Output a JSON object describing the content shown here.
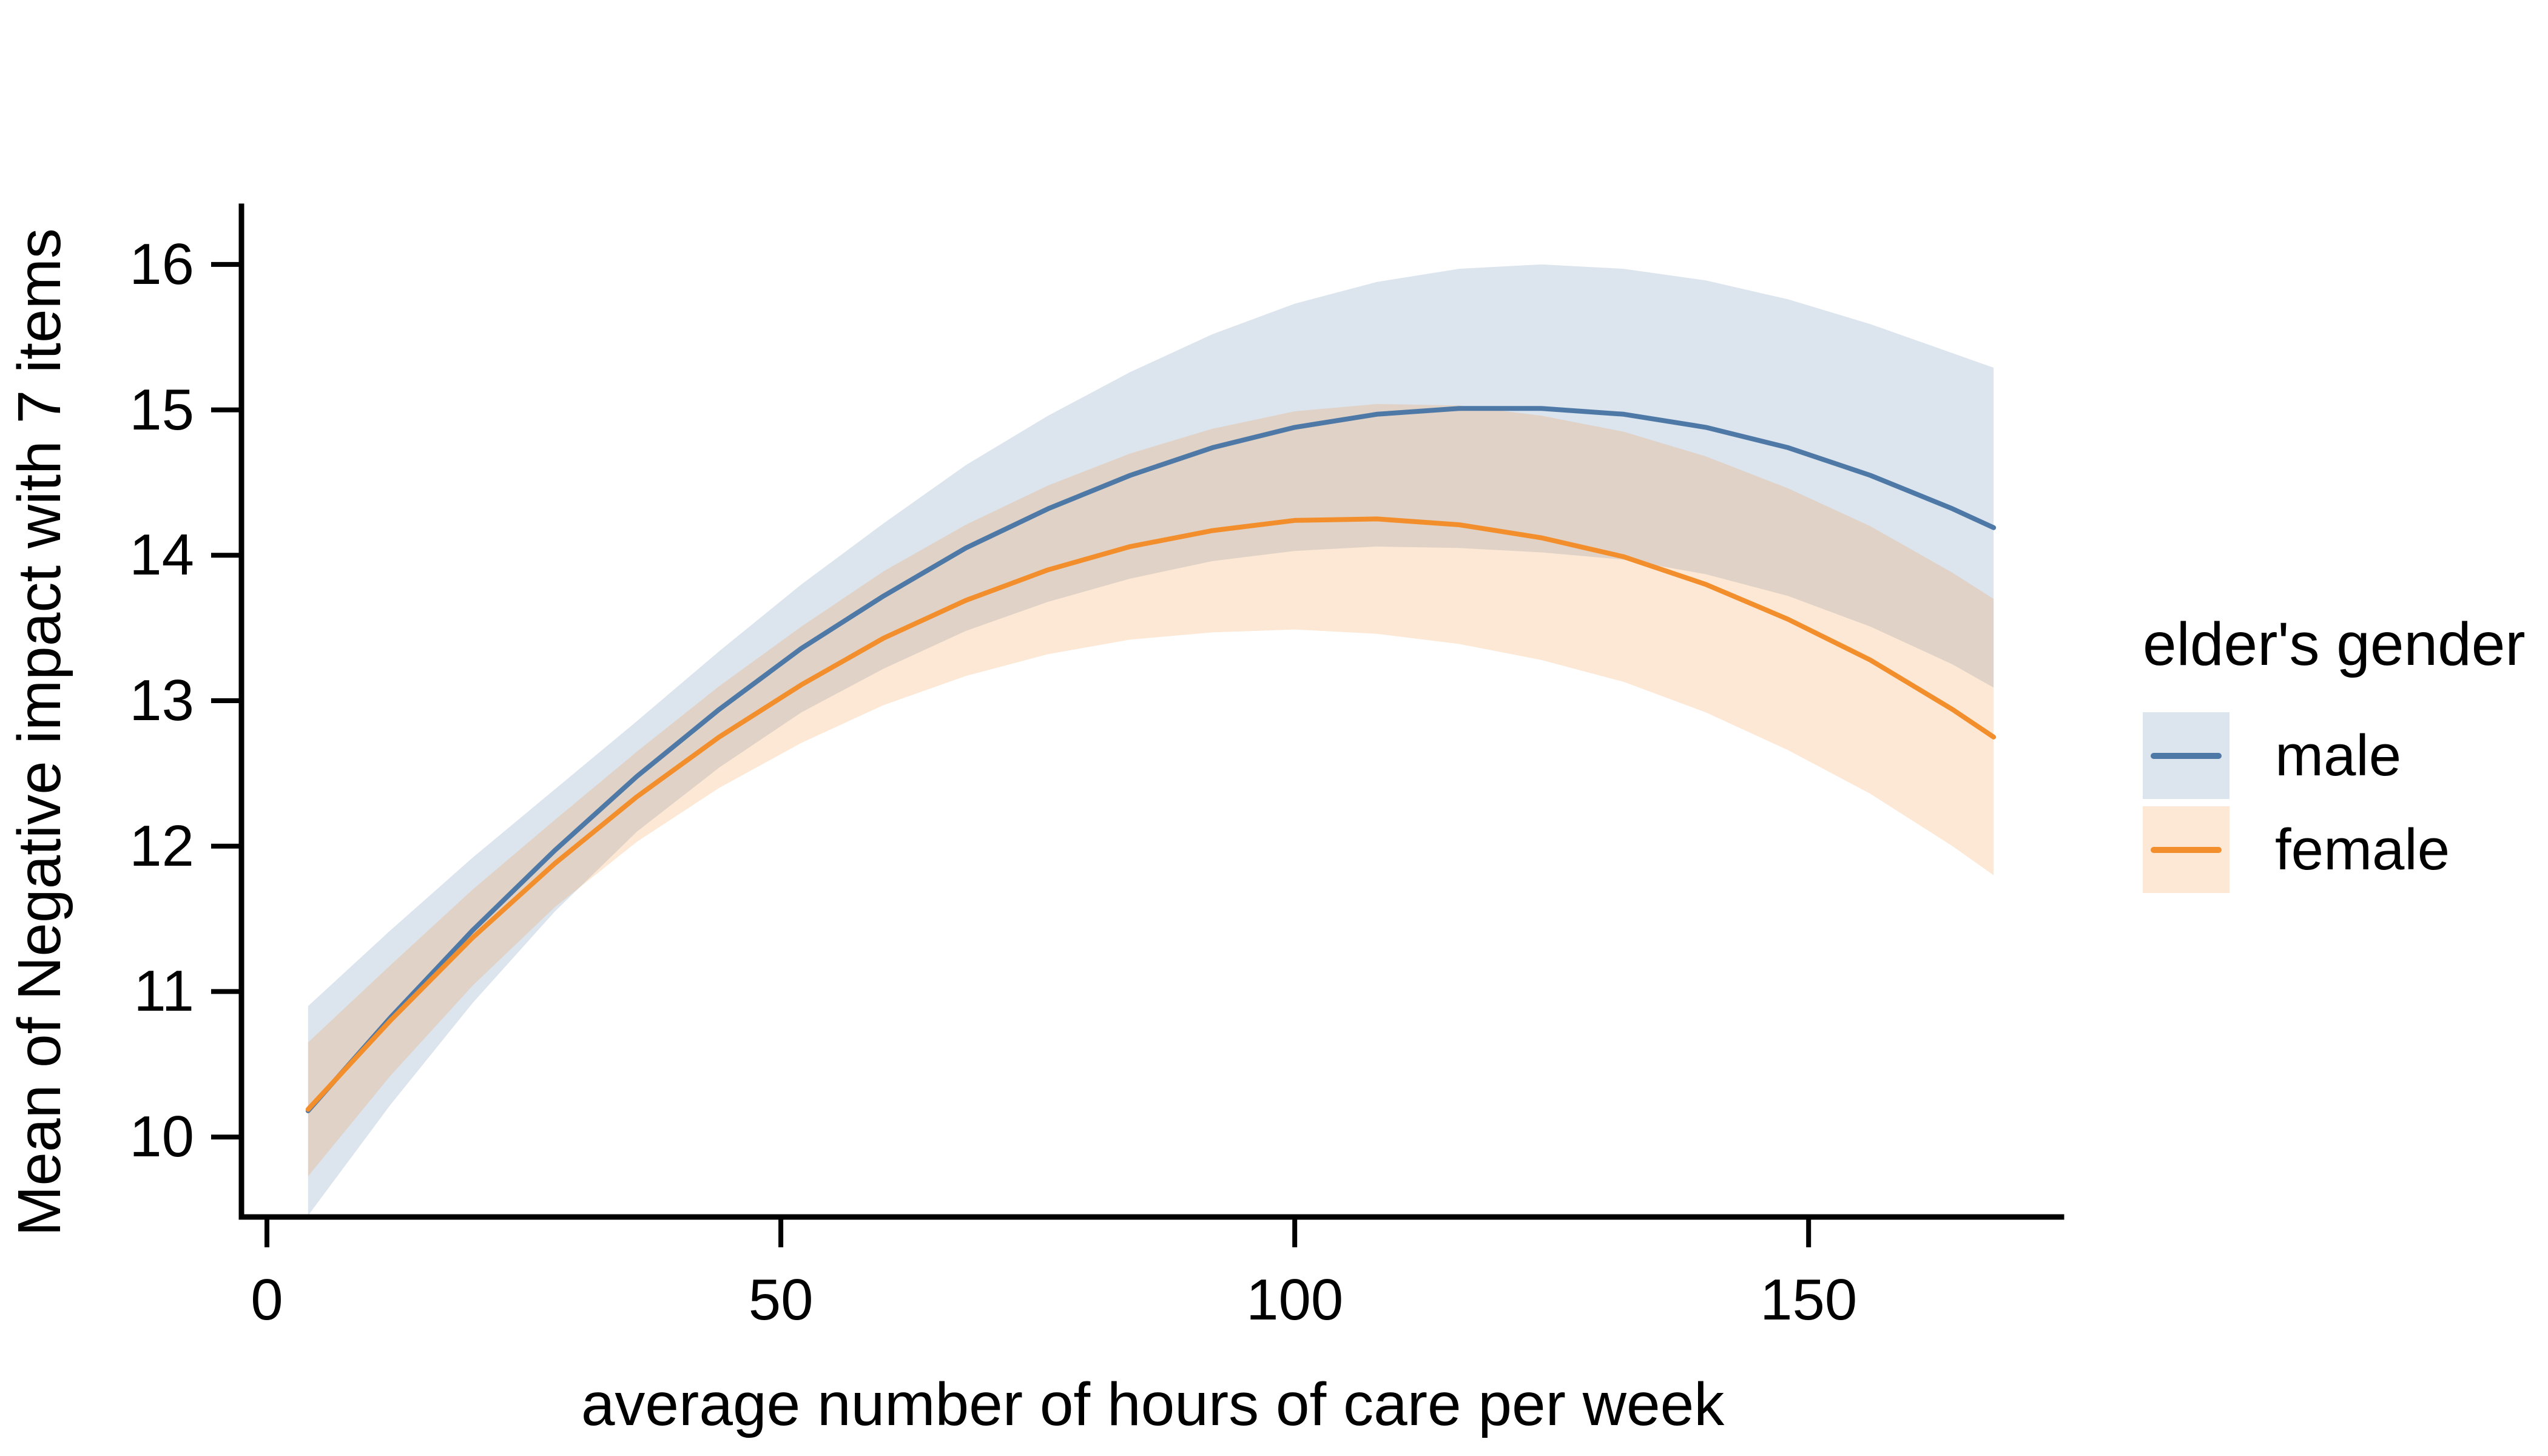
{
  "figure": {
    "background": "#ffffff"
  },
  "chart_data": {
    "type": "line",
    "title": "",
    "xlabel": "average number of hours of care per week",
    "ylabel": "Mean of Negative impact with 7 items",
    "x_ticks": [
      0,
      50,
      100,
      150
    ],
    "y_ticks": [
      10,
      11,
      12,
      13,
      14,
      15,
      16
    ],
    "xlim": [
      -2.48,
      174.6
    ],
    "ylim": [
      9.45,
      16.4
    ],
    "grid": "off",
    "axis_color": "#000000",
    "legend": {
      "title": "elder's gender",
      "position": "right",
      "items": [
        {
          "label": "male",
          "line_color": "#4E79A7",
          "fill_color": "rgba(78,121,167,0.20)"
        },
        {
          "label": "female",
          "line_color": "#F28E2B",
          "fill_color": "rgba(242,142,43,0.20)"
        }
      ]
    },
    "series": [
      {
        "name": "male",
        "color": "#4E79A7",
        "fill": "rgba(78,121,167,0.20)",
        "x": [
          4,
          12,
          20,
          28,
          36,
          44,
          52,
          60,
          68,
          76,
          84,
          92,
          100,
          108,
          116,
          124,
          132,
          140,
          148,
          156,
          164,
          168
        ],
        "y": [
          10.18,
          10.82,
          11.42,
          11.97,
          12.48,
          12.94,
          13.36,
          13.72,
          14.05,
          14.32,
          14.55,
          14.74,
          14.88,
          14.97,
          15.01,
          15.01,
          14.97,
          14.88,
          14.74,
          14.55,
          14.32,
          14.19
        ],
        "lo": [
          9.46,
          10.22,
          10.92,
          11.55,
          12.1,
          12.54,
          12.92,
          13.22,
          13.48,
          13.68,
          13.84,
          13.96,
          14.03,
          14.06,
          14.05,
          14.02,
          13.97,
          13.87,
          13.72,
          13.51,
          13.25,
          13.09
        ],
        "hi": [
          10.9,
          11.42,
          11.92,
          12.39,
          12.86,
          13.34,
          13.8,
          14.22,
          14.62,
          14.96,
          15.26,
          15.52,
          15.73,
          15.88,
          15.97,
          16.0,
          15.97,
          15.89,
          15.76,
          15.59,
          15.39,
          15.29
        ]
      },
      {
        "name": "female",
        "color": "#F28E2B",
        "fill": "rgba(242,142,43,0.20)",
        "x": [
          4,
          12,
          20,
          28,
          36,
          44,
          52,
          60,
          68,
          76,
          84,
          92,
          100,
          108,
          116,
          124,
          132,
          140,
          148,
          156,
          164,
          168
        ],
        "y": [
          10.19,
          10.8,
          11.37,
          11.88,
          12.34,
          12.75,
          13.11,
          13.43,
          13.69,
          13.9,
          14.06,
          14.17,
          14.24,
          14.25,
          14.21,
          14.12,
          13.99,
          13.8,
          13.56,
          13.28,
          12.94,
          12.75
        ],
        "lo": [
          9.73,
          10.42,
          11.04,
          11.58,
          12.03,
          12.4,
          12.71,
          12.97,
          13.17,
          13.32,
          13.42,
          13.47,
          13.49,
          13.46,
          13.39,
          13.28,
          13.13,
          12.92,
          12.66,
          12.36,
          12.0,
          11.8
        ],
        "hi": [
          10.65,
          11.18,
          11.7,
          12.18,
          12.65,
          13.1,
          13.51,
          13.89,
          14.21,
          14.48,
          14.7,
          14.87,
          14.99,
          15.04,
          15.03,
          14.96,
          14.85,
          14.68,
          14.46,
          14.2,
          13.88,
          13.7
        ]
      }
    ]
  }
}
